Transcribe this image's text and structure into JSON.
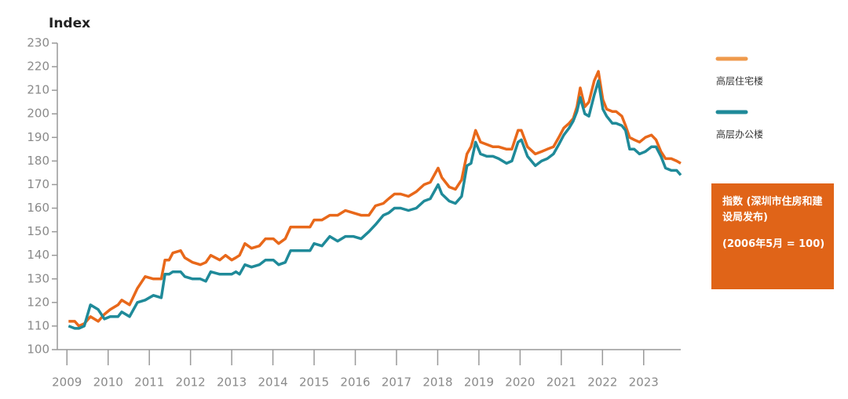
{
  "chart_data": {
    "type": "line",
    "y_label": "Index",
    "x": [
      2009.04,
      2009.19,
      2009.29,
      2009.42,
      2009.57,
      2009.76,
      2009.91,
      2010.05,
      2010.24,
      2010.33,
      2010.52,
      2010.71,
      2010.9,
      2011.1,
      2011.29,
      2011.38,
      2011.48,
      2011.57,
      2011.76,
      2011.86,
      2012.05,
      2012.24,
      2012.37,
      2012.49,
      2012.71,
      2012.85,
      2013.0,
      2013.1,
      2013.19,
      2013.32,
      2013.48,
      2013.67,
      2013.82,
      2014.01,
      2014.14,
      2014.3,
      2014.43,
      2014.71,
      2014.9,
      2015.0,
      2015.19,
      2015.38,
      2015.57,
      2015.76,
      2015.95,
      2016.14,
      2016.33,
      2016.49,
      2016.68,
      2016.81,
      2016.95,
      2017.1,
      2017.29,
      2017.48,
      2017.67,
      2017.82,
      2018.01,
      2018.1,
      2018.28,
      2018.43,
      2018.58,
      2018.71,
      2018.81,
      2018.92,
      2019.04,
      2019.19,
      2019.34,
      2019.48,
      2019.67,
      2019.8,
      2019.95,
      2020.03,
      2020.18,
      2020.37,
      2020.52,
      2020.66,
      2020.81,
      2020.94,
      2021.06,
      2021.19,
      2021.29,
      2021.38,
      2021.46,
      2021.57,
      2021.67,
      2021.8,
      2021.9,
      2022.01,
      2022.1,
      2022.24,
      2022.33,
      2022.47,
      2022.56,
      2022.66,
      2022.77,
      2022.9,
      2023.04,
      2023.19,
      2023.3,
      2023.42,
      2023.53,
      2023.67,
      2023.8,
      2023.9
    ],
    "series": [
      {
        "name": "高层住宅楼",
        "color": "#e8681a",
        "legend_color": "#ef9a4c",
        "values": [
          112,
          112,
          110,
          111,
          114,
          112,
          115,
          117,
          119,
          121,
          119,
          126,
          131,
          130,
          130,
          138,
          138,
          141,
          142,
          139,
          137,
          136,
          137,
          140,
          138,
          140,
          138,
          139,
          140,
          145,
          143,
          144,
          147,
          147,
          145,
          147,
          152,
          152,
          152,
          155,
          155,
          157,
          157,
          159,
          158,
          157,
          157,
          161,
          162,
          164,
          166,
          166,
          165,
          167,
          170,
          171,
          177,
          173,
          169,
          168,
          172,
          183,
          186,
          193,
          188,
          187,
          186,
          186,
          185,
          185,
          193,
          193,
          186,
          183,
          184,
          185,
          186,
          190,
          194,
          196,
          198,
          203,
          211,
          203,
          205,
          214,
          218,
          206,
          202,
          201,
          201,
          199,
          195,
          190,
          189,
          188,
          190,
          191,
          189,
          184,
          181,
          181,
          180,
          179
        ]
      },
      {
        "name": "高层办公楼",
        "color": "#1f8a99",
        "legend_color": "#1f8a99",
        "values": [
          110,
          109,
          109,
          110,
          119,
          117,
          113,
          114,
          114,
          116,
          114,
          120,
          121,
          123,
          122,
          132,
          132,
          133,
          133,
          131,
          130,
          130,
          129,
          133,
          132,
          132,
          132,
          133,
          132,
          136,
          135,
          136,
          138,
          138,
          136,
          137,
          142,
          142,
          142,
          145,
          144,
          148,
          146,
          148,
          148,
          147,
          150,
          153,
          157,
          158,
          160,
          160,
          159,
          160,
          163,
          164,
          170,
          166,
          163,
          162,
          165,
          178,
          179,
          188,
          183,
          182,
          182,
          181,
          179,
          180,
          188,
          189,
          182,
          178,
          180,
          181,
          183,
          187,
          191,
          194,
          197,
          201,
          207,
          200,
          199,
          208,
          214,
          202,
          199,
          196,
          196,
          195,
          193,
          185,
          185,
          183,
          184,
          186,
          186,
          182,
          177,
          176,
          176,
          174
        ]
      }
    ],
    "xlim": [
      2008.9,
      2023.9
    ],
    "xticks": [
      2009,
      2010,
      2011,
      2012,
      2013,
      2014,
      2015,
      2016,
      2017,
      2018,
      2019,
      2020,
      2021,
      2022,
      2023
    ],
    "ylim": [
      100,
      230
    ],
    "yticks": [
      100,
      110,
      120,
      130,
      140,
      150,
      160,
      170,
      180,
      190,
      200,
      210,
      220,
      230
    ],
    "note": [
      "指数 (深圳市住房和建设局发布)",
      "(2006年5月 = 100)"
    ],
    "note_color": "#e06418"
  }
}
